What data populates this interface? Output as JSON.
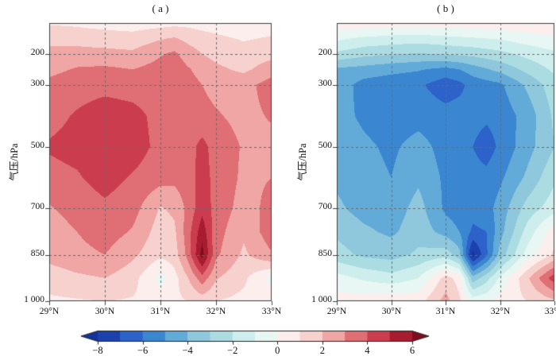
{
  "figure": {
    "background": "#ffffff"
  },
  "plot_style": {
    "frame_color": "#3a4040",
    "grid_color": "#6b6b6b",
    "tick_color": "#3a4040"
  },
  "chart_data": [
    {
      "type": "heatmap",
      "subtype": "filled-contour",
      "title": "( a )",
      "ylabel": "气压/hPa",
      "xlabel": "",
      "xlim": [
        29,
        33
      ],
      "ylim_pressure": [
        100,
        1000
      ],
      "x_ticks": {
        "values": [
          29,
          30,
          31,
          32,
          33
        ],
        "labels": [
          "29°N",
          "30°N",
          "31°N",
          "32°N",
          "33°N"
        ]
      },
      "y_ticks": {
        "values": [
          200,
          300,
          500,
          700,
          850,
          1000
        ],
        "labels": [
          "200",
          "300",
          "500",
          "700",
          "850",
          "1 000"
        ]
      },
      "grid": {
        "x": [
          30,
          31,
          32
        ],
        "y": [
          200,
          300,
          500,
          700,
          850
        ]
      },
      "lat": [
        29,
        29.5,
        30,
        30.5,
        31,
        31.25,
        31.5,
        31.75,
        32,
        32.5,
        33
      ],
      "pressure": [
        100,
        150,
        200,
        250,
        300,
        400,
        500,
        600,
        700,
        775,
        850,
        925,
        1000
      ],
      "values": [
        [
          0.9,
          0.8,
          0.6,
          0.5,
          0.6,
          0.7,
          0.7,
          0.6,
          0.5,
          0.4,
          0.5
        ],
        [
          1.7,
          1.6,
          1.5,
          1.4,
          1.9,
          2.1,
          1.7,
          1.4,
          1.2,
          0.9,
          1.1
        ],
        [
          2.3,
          2.4,
          2.3,
          2.2,
          2.9,
          3.2,
          2.5,
          2.0,
          1.7,
          1.4,
          1.7
        ],
        [
          2.7,
          3.1,
          3.2,
          3.0,
          3.4,
          3.6,
          3.1,
          2.6,
          2.2,
          1.8,
          2.5
        ],
        [
          3.3,
          3.6,
          3.7,
          3.6,
          3.5,
          3.6,
          3.4,
          3.0,
          2.7,
          2.6,
          3.5
        ],
        [
          3.7,
          4.1,
          4.5,
          4.3,
          3.7,
          3.6,
          3.5,
          3.3,
          3.1,
          2.7,
          3.1
        ],
        [
          4.1,
          4.3,
          4.7,
          4.5,
          3.7,
          3.5,
          3.6,
          4.3,
          3.6,
          2.9,
          2.7
        ],
        [
          3.7,
          3.9,
          4.4,
          3.9,
          3.4,
          3.3,
          3.6,
          4.4,
          3.7,
          2.8,
          3.0
        ],
        [
          2.9,
          3.4,
          3.8,
          3.4,
          1.9,
          2.2,
          3.3,
          4.7,
          3.6,
          2.6,
          3.3
        ],
        [
          2.5,
          3.0,
          3.5,
          2.9,
          1.5,
          1.8,
          3.6,
          5.6,
          3.4,
          2.2,
          3.6
        ],
        [
          2.3,
          2.7,
          3.0,
          2.2,
          1.2,
          1.5,
          3.4,
          6.4,
          3.2,
          1.8,
          2.9
        ],
        [
          1.5,
          1.8,
          2.0,
          1.4,
          -0.4,
          0.6,
          2.0,
          3.6,
          2.1,
          1.2,
          -0.3
        ],
        [
          0.8,
          0.9,
          1.0,
          0.9,
          0.6,
          0.8,
          1.0,
          1.4,
          1.0,
          0.7,
          0.5
        ]
      ]
    },
    {
      "type": "heatmap",
      "subtype": "filled-contour",
      "title": "( b )",
      "ylabel": "气压/hPa",
      "xlabel": "",
      "xlim": [
        29,
        33
      ],
      "ylim_pressure": [
        100,
        1000
      ],
      "x_ticks": {
        "values": [
          29,
          30,
          31,
          32,
          33
        ],
        "labels": [
          "29°N",
          "30°N",
          "31°N",
          "32°N",
          "33°N"
        ]
      },
      "y_ticks": {
        "values": [
          200,
          300,
          500,
          700,
          850,
          1000
        ],
        "labels": [
          "200",
          "300",
          "500",
          "700",
          "850",
          "1 000"
        ]
      },
      "grid": {
        "x": [
          30,
          31,
          32
        ],
        "y": [
          200,
          300,
          500,
          700,
          850
        ]
      },
      "lat": [
        29,
        29.5,
        30,
        30.5,
        31,
        31.25,
        31.5,
        31.75,
        32,
        32.5,
        33
      ],
      "pressure": [
        100,
        150,
        200,
        250,
        300,
        400,
        500,
        600,
        700,
        775,
        850,
        925,
        1000
      ],
      "values": [
        [
          0.8,
          0.7,
          0.6,
          0.6,
          0.6,
          0.6,
          0.6,
          0.7,
          0.7,
          0.8,
          1.0
        ],
        [
          -0.8,
          -1.2,
          -1.4,
          -1.5,
          -1.3,
          -1.2,
          -1.1,
          -1.0,
          -0.9,
          -0.5,
          -0.2
        ],
        [
          -2.2,
          -2.7,
          -2.9,
          -3.1,
          -2.9,
          -2.8,
          -2.7,
          -2.5,
          -2.3,
          -1.7,
          -1.2
        ],
        [
          -4.2,
          -4.4,
          -4.7,
          -4.9,
          -5.3,
          -5.0,
          -4.5,
          -4.1,
          -3.7,
          -2.7,
          -1.8
        ],
        [
          -4.4,
          -5.4,
          -5.6,
          -5.8,
          -6.6,
          -6.3,
          -5.6,
          -5.4,
          -5.2,
          -3.8,
          -2.4
        ],
        [
          -4.6,
          -5.2,
          -5.6,
          -5.4,
          -5.6,
          -5.5,
          -5.6,
          -5.8,
          -5.6,
          -4.6,
          -2.8
        ],
        [
          -4.4,
          -4.8,
          -5.2,
          -4.6,
          -5.4,
          -5.5,
          -6.0,
          -6.5,
          -5.8,
          -4.4,
          -3.0
        ],
        [
          -4.2,
          -4.6,
          -5.0,
          -4.2,
          -5.2,
          -5.4,
          -5.6,
          -5.7,
          -5.2,
          -3.8,
          -2.2
        ],
        [
          -3.8,
          -4.4,
          -4.6,
          -3.6,
          -5.2,
          -5.5,
          -5.6,
          -5.4,
          -4.6,
          -2.6,
          -1.4
        ],
        [
          -3.2,
          -3.8,
          -4.2,
          -3.4,
          -4.4,
          -5.0,
          -6.2,
          -6.0,
          -4.4,
          -1.6,
          0.6
        ],
        [
          -2.6,
          -3.2,
          -3.4,
          -2.8,
          -2.4,
          -3.6,
          -8.4,
          -6.2,
          -3.6,
          -0.6,
          1.2
        ],
        [
          -0.6,
          -1.2,
          -1.6,
          -1.0,
          1.4,
          0.6,
          -3.6,
          -2.4,
          -0.8,
          1.8,
          4.6
        ],
        [
          0.4,
          0.6,
          0.8,
          0.6,
          2.4,
          1.2,
          -0.4,
          -0.2,
          0.4,
          1.0,
          1.8
        ]
      ]
    }
  ],
  "colorbar": {
    "range": [
      -8,
      6
    ],
    "extend": "both",
    "levels": [
      -8,
      -7,
      -6,
      -5,
      -4,
      -3,
      -2,
      -1,
      0,
      1,
      2,
      3,
      4,
      5,
      6
    ],
    "colors": [
      "#14339b",
      "#1c40ad",
      "#2c62c9",
      "#3a86d0",
      "#62aad8",
      "#8fc8dc",
      "#abdce2",
      "#cdeeed",
      "#e8f7f3",
      "#fceeec",
      "#f6d1ce",
      "#efa6a4",
      "#df6e75",
      "#cb3d4e",
      "#a81c30",
      "#7d0d1d"
    ],
    "tick_values": [
      -8,
      -6,
      -4,
      -2,
      0,
      2,
      4,
      6
    ],
    "tick_labels": [
      "−8",
      "−6",
      "−4",
      "−2",
      "0",
      "2",
      "4",
      "6"
    ]
  }
}
